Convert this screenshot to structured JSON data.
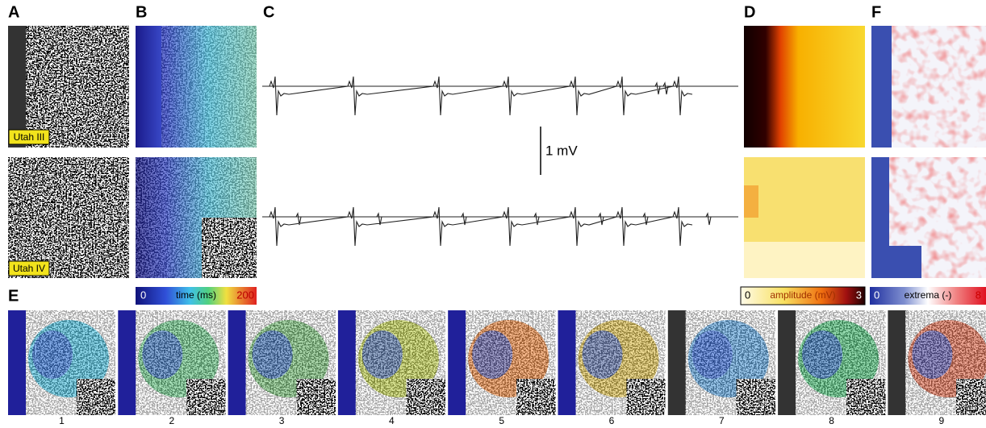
{
  "panel_labels": [
    "A",
    "B",
    "C",
    "D",
    "E",
    "F"
  ],
  "array_labels": [
    "Utah III",
    "Utah IV"
  ],
  "scale_bar": "1 mV",
  "colorbars": [
    {
      "min": 0,
      "label": "time (ms)",
      "max": 200
    },
    {
      "min": 0,
      "label": "amplitude (mV)",
      "max": 3
    },
    {
      "min": 0,
      "label": "extrema (-)",
      "max": 8
    }
  ],
  "frames": [
    1,
    2,
    3,
    4,
    5,
    6,
    7,
    8,
    9
  ]
}
